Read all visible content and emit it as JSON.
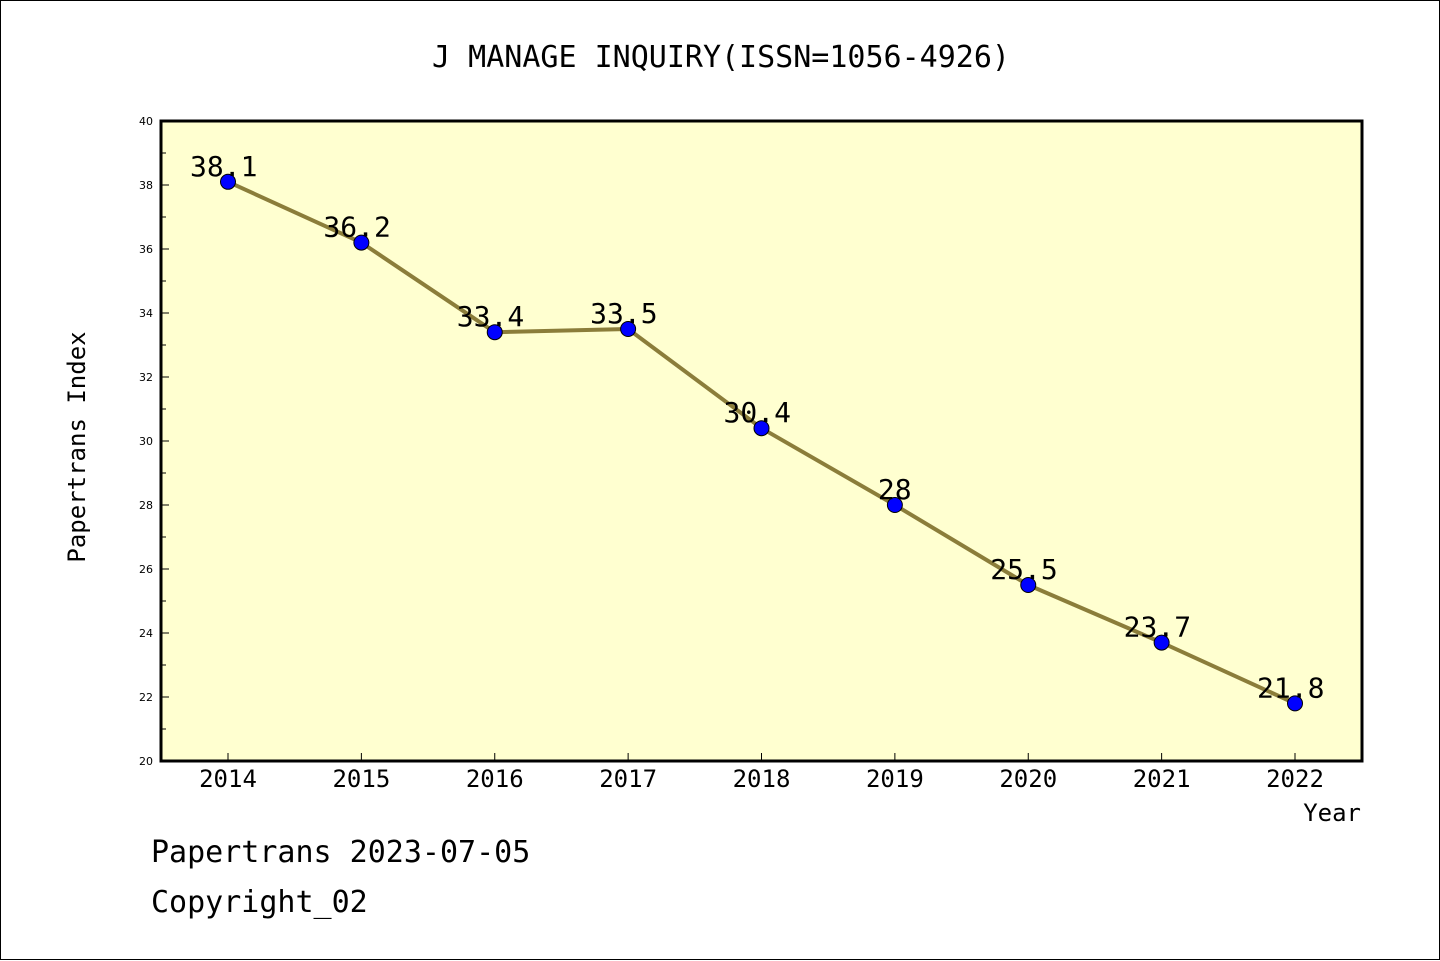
{
  "chart_data": {
    "type": "line",
    "title": "J MANAGE INQUIRY(ISSN=1056-4926)",
    "xlabel": "Year",
    "ylabel": "Papertrans Index",
    "categories": [
      "2014",
      "2015",
      "2016",
      "2017",
      "2018",
      "2019",
      "2020",
      "2021",
      "2022"
    ],
    "series": [
      {
        "values": [
          38.1,
          36.2,
          33.4,
          33.5,
          30.4,
          28,
          25.5,
          23.7,
          21.8
        ],
        "labels": [
          "38.1",
          "36.2",
          "33.4",
          "33.5",
          "30.4",
          "28",
          "25.5",
          "23.7",
          "21.8"
        ]
      }
    ],
    "ylim": [
      20,
      40
    ],
    "yticks": [
      "20",
      "22",
      "24",
      "26",
      "28",
      "30",
      "32",
      "34",
      "36",
      "38",
      "40"
    ],
    "grid": false,
    "colors": {
      "plot_background": "#ffffd0",
      "line": "#8b7d3a",
      "marker": "#0000ff"
    }
  },
  "footer": {
    "line1": "Papertrans 2023-07-05",
    "line2": "Copyright_02"
  }
}
